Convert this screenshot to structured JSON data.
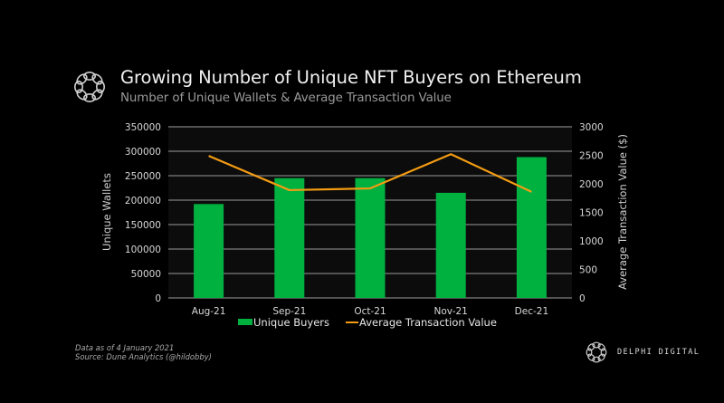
{
  "header": {
    "title": "Growing Number of Unique NFT Buyers on Ethereum",
    "subtitle": "Number of Unique Wallets & Average Transaction Value",
    "logo_icon": "delphi-knot-icon"
  },
  "footnote": {
    "line1": "Data as of 4 January 2021",
    "line2": "Source: Dune Analytics (@hildobby)"
  },
  "brand": {
    "name": "DELPHI DIGITAL",
    "logo_icon": "delphi-knot-icon"
  },
  "colors": {
    "background": "#000000",
    "plot_background": "#0c0c0c",
    "bars": "#00b140",
    "line": "#f39c12",
    "grid": "#6b6b6b"
  },
  "chart_data": {
    "type": "bar",
    "title": "Growing Number of Unique NFT Buyers on Ethereum",
    "subtitle": "Number of Unique Wallets & Average Transaction Value",
    "categories": [
      "Aug-21",
      "Sep-21",
      "Oct-21",
      "Nov-21",
      "Dec-21"
    ],
    "series": [
      {
        "name": "Unique Buyers",
        "type": "bar",
        "axis": "left",
        "values": [
          192000,
          245000,
          245000,
          215000,
          288000
        ]
      },
      {
        "name": "Average Transaction Value",
        "type": "line",
        "axis": "right",
        "values": [
          2490,
          1890,
          1920,
          2520,
          1860
        ]
      }
    ],
    "xlabel": "",
    "ylabel": "Unique Wallets",
    "ylabel_right": "Average Transaction Value ($)",
    "ylim": [
      0,
      350000
    ],
    "ylim_right": [
      0,
      3000
    ],
    "yticks": [
      0,
      50000,
      100000,
      150000,
      200000,
      250000,
      300000,
      350000
    ],
    "yticks_right": [
      0,
      500,
      1000,
      1500,
      2000,
      2500,
      3000
    ],
    "grid": true,
    "legend": [
      "Unique Buyers",
      "Average Transaction Value"
    ],
    "legend_position": "bottom"
  }
}
